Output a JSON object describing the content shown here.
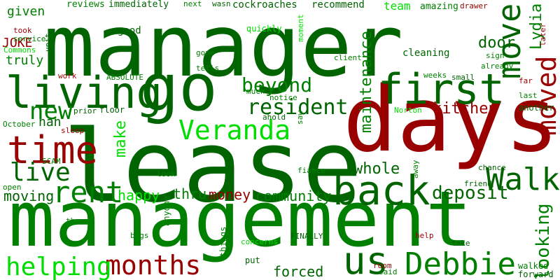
{
  "palette": {
    "dark_green": "#006400",
    "green": "#008000",
    "bright_green": "#00dd00",
    "dark_red": "#990000"
  },
  "words": [
    {
      "text": "manager",
      "color": "dark_green"
    },
    {
      "text": "go",
      "color": "dark_green"
    },
    {
      "text": "living",
      "color": "dark_green"
    },
    {
      "text": "lease",
      "color": "dark_green"
    },
    {
      "text": "days",
      "color": "dark_red"
    },
    {
      "text": "management",
      "color": "green"
    },
    {
      "text": "first",
      "color": "dark_green"
    },
    {
      "text": "move",
      "color": "dark_green"
    },
    {
      "text": "moved",
      "color": "dark_red"
    },
    {
      "text": "Veranda",
      "color": "bright_green"
    },
    {
      "text": "time",
      "color": "dark_red"
    },
    {
      "text": "back",
      "color": "dark_green"
    },
    {
      "text": "rent",
      "color": "green"
    },
    {
      "text": "live",
      "color": "dark_green"
    },
    {
      "text": "new",
      "color": "green"
    },
    {
      "text": "resident",
      "color": "dark_green"
    },
    {
      "text": "Walk",
      "color": "dark_green"
    },
    {
      "text": "months",
      "color": "dark_red"
    },
    {
      "text": "us",
      "color": "dark_green"
    },
    {
      "text": "Debbie",
      "color": "green"
    },
    {
      "text": "helping",
      "color": "bright_green"
    },
    {
      "text": "beyond",
      "color": "green"
    },
    {
      "text": "kitchen",
      "color": "dark_red"
    },
    {
      "text": "Lydia",
      "color": "green"
    },
    {
      "text": "make",
      "color": "bright_green"
    },
    {
      "text": "looking",
      "color": "green"
    },
    {
      "text": "deposit",
      "color": "dark_green"
    },
    {
      "text": "whole",
      "color": "dark_green"
    },
    {
      "text": "maintenance",
      "color": "green"
    },
    {
      "text": "door",
      "color": "dark_green"
    },
    {
      "text": "happy",
      "color": "bright_green"
    },
    {
      "text": "thru",
      "color": "green"
    },
    {
      "text": "money",
      "color": "dark_red"
    },
    {
      "text": "community",
      "color": "green"
    },
    {
      "text": "moving",
      "color": "dark_green"
    },
    {
      "text": "forced",
      "color": "dark_green"
    },
    {
      "text": "truly",
      "color": "green"
    },
    {
      "text": "given",
      "color": "green"
    },
    {
      "text": "JOKE",
      "color": "dark_red"
    },
    {
      "text": "reviews",
      "color": "green"
    },
    {
      "text": "immediately",
      "color": "dark_green"
    },
    {
      "text": "next",
      "color": "green"
    },
    {
      "text": "wasn",
      "color": "dark_green"
    },
    {
      "text": "cockroaches",
      "color": "dark_green"
    },
    {
      "text": "recommend",
      "color": "dark_green"
    },
    {
      "text": "team",
      "color": "bright_green"
    },
    {
      "text": "amazing",
      "color": "green"
    },
    {
      "text": "drawer",
      "color": "dark_red"
    },
    {
      "text": "later",
      "color": "dark_red"
    },
    {
      "text": "good",
      "color": "dark_green"
    },
    {
      "text": "quickly",
      "color": "bright_green"
    },
    {
      "text": "moment",
      "color": "bright_green"
    },
    {
      "text": "took",
      "color": "dark_red"
    },
    {
      "text": "service",
      "color": "green"
    },
    {
      "text": "Commons",
      "color": "bright_green"
    },
    {
      "text": "unit",
      "color": "dark_green"
    },
    {
      "text": "cleaning",
      "color": "dark_green"
    },
    {
      "text": "gone",
      "color": "green"
    },
    {
      "text": "client",
      "color": "green"
    },
    {
      "text": "sign",
      "color": "green"
    },
    {
      "text": "already",
      "color": "green"
    },
    {
      "text": "tells",
      "color": "green"
    },
    {
      "text": "work",
      "color": "dark_red"
    },
    {
      "text": "ABSOLUTE",
      "color": "green"
    },
    {
      "text": "weeks",
      "color": "green"
    },
    {
      "text": "small",
      "color": "dark_green"
    },
    {
      "text": "far",
      "color": "dark_red"
    },
    {
      "text": "much",
      "color": "green"
    },
    {
      "text": "notice",
      "color": "green"
    },
    {
      "text": "last",
      "color": "green"
    },
    {
      "text": "another",
      "color": "dark_green"
    },
    {
      "text": "prior",
      "color": "dark_green"
    },
    {
      "text": "floor",
      "color": "dark_green"
    },
    {
      "text": "ahold",
      "color": "dark_green"
    },
    {
      "text": "saw",
      "color": "green"
    },
    {
      "text": "Norton",
      "color": "bright_green"
    },
    {
      "text": "October",
      "color": "green"
    },
    {
      "text": "nan",
      "color": "dark_green"
    },
    {
      "text": "sleep",
      "color": "dark_red"
    },
    {
      "text": "SCAM",
      "color": "green"
    },
    {
      "text": "look",
      "color": "green"
    },
    {
      "text": "fiance",
      "color": "green"
    },
    {
      "text": "away",
      "color": "green"
    },
    {
      "text": "chance",
      "color": "dark_green"
    },
    {
      "text": "open",
      "color": "green"
    },
    {
      "text": "friend",
      "color": "dark_green"
    },
    {
      "text": "anyone",
      "color": "green"
    },
    {
      "text": "three",
      "color": "green"
    },
    {
      "text": "bugs",
      "color": "green"
    },
    {
      "text": "things",
      "color": "green"
    },
    {
      "text": "concerns",
      "color": "bright_green"
    },
    {
      "text": "FINALLY",
      "color": "dark_green"
    },
    {
      "text": "help",
      "color": "dark_red"
    },
    {
      "text": "take",
      "color": "dark_green"
    },
    {
      "text": "put",
      "color": "dark_green"
    },
    {
      "text": "room",
      "color": "dark_red"
    },
    {
      "text": "said",
      "color": "green"
    },
    {
      "text": "walked",
      "color": "green"
    },
    {
      "text": "forward",
      "color": "dark_green"
    }
  ]
}
